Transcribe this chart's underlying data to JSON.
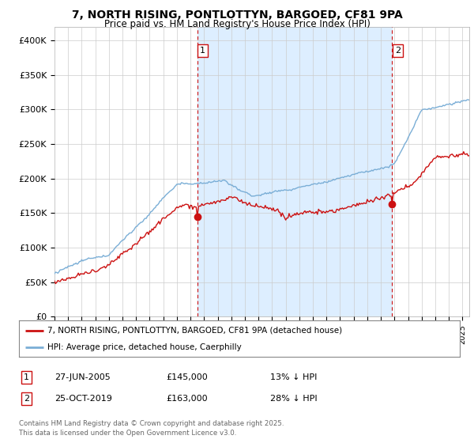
{
  "title_line1": "7, NORTH RISING, PONTLOTTYN, BARGOED, CF81 9PA",
  "title_line2": "Price paid vs. HM Land Registry's House Price Index (HPI)",
  "ylabel_ticks": [
    "£0",
    "£50K",
    "£100K",
    "£150K",
    "£200K",
    "£250K",
    "£300K",
    "£350K",
    "£400K"
  ],
  "ytick_values": [
    0,
    50000,
    100000,
    150000,
    200000,
    250000,
    300000,
    350000,
    400000
  ],
  "ylim": [
    0,
    420000
  ],
  "xlim_start": 1995.0,
  "xlim_end": 2025.5,
  "hpi_color": "#7aaed6",
  "price_color": "#cc1111",
  "vline_color": "#cc1111",
  "shade_color": "#ddeeff",
  "sale1_x": 2005.49,
  "sale1_price": 145000,
  "sale2_x": 2019.82,
  "sale2_price": 163000,
  "legend_line1": "7, NORTH RISING, PONTLOTTYN, BARGOED, CF81 9PA (detached house)",
  "legend_line2": "HPI: Average price, detached house, Caerphilly",
  "table_row1": [
    "1",
    "27-JUN-2005",
    "£145,000",
    "13% ↓ HPI"
  ],
  "table_row2": [
    "2",
    "25-OCT-2019",
    "£163,000",
    "28% ↓ HPI"
  ],
  "footnote": "Contains HM Land Registry data © Crown copyright and database right 2025.\nThis data is licensed under the Open Government Licence v3.0.",
  "background_color": "#ffffff",
  "grid_color": "#cccccc",
  "chart_bg": "#f0f4ff"
}
